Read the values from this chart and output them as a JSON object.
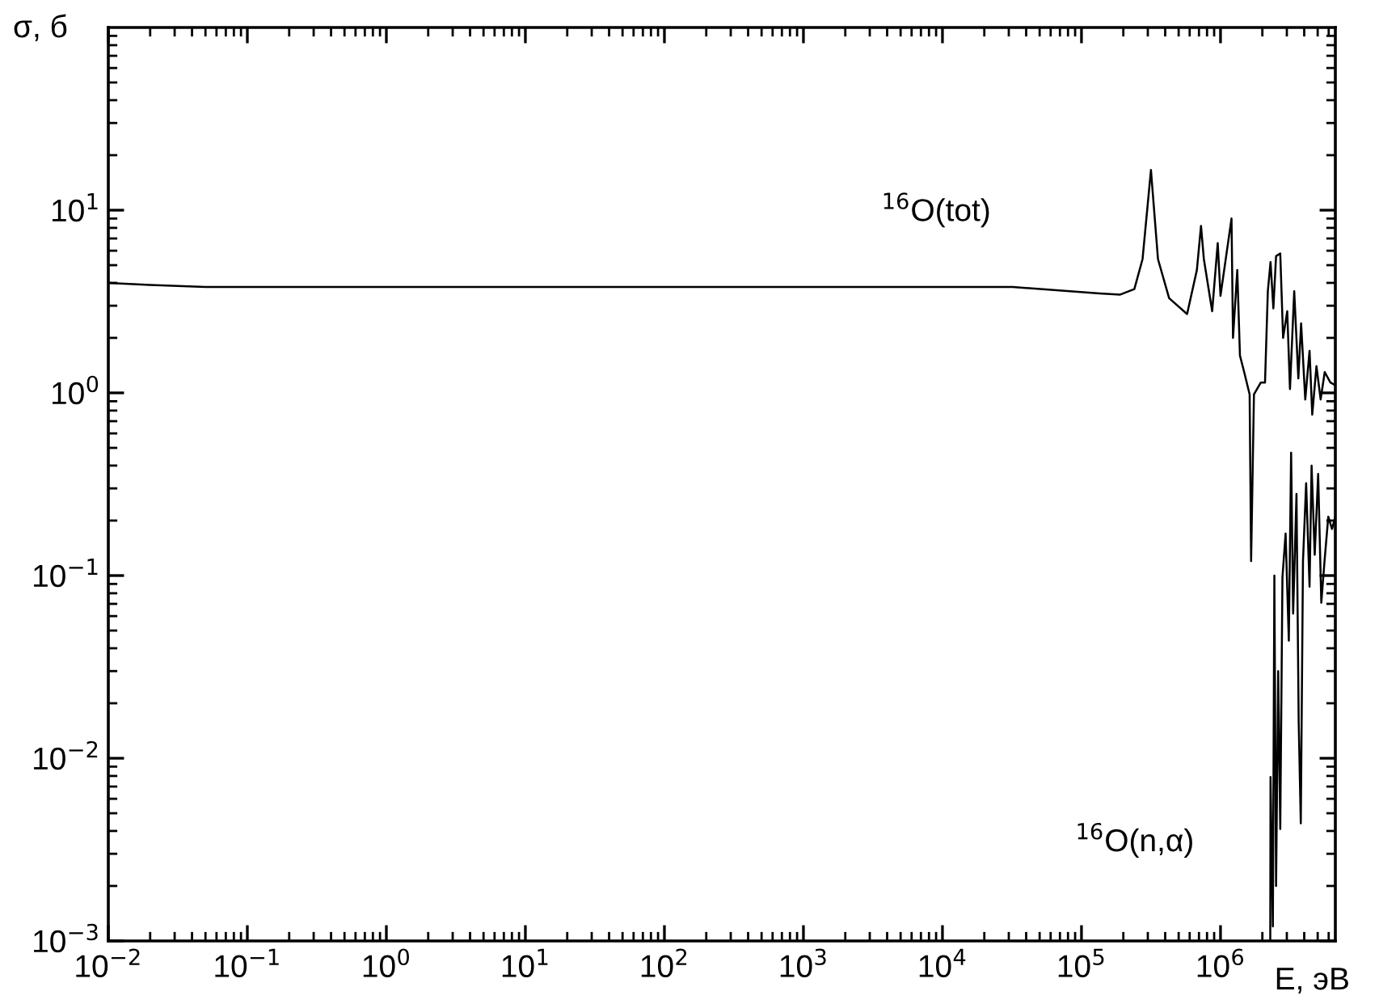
{
  "chart_data": {
    "type": "line",
    "xlabel": "E, эВ",
    "ylabel": "σ, б",
    "log": "xy",
    "grid": false,
    "legend": false,
    "marker": "none",
    "line_style": "solid",
    "xlim": [
      0.01,
      6700000
    ],
    "ylim": [
      0.001,
      100
    ],
    "xticks": [
      {
        "value": 0.01,
        "label": "10$^{−2}$"
      },
      {
        "value": 0.1,
        "label": "10$^{−1}$"
      },
      {
        "value": 1,
        "label": "10$^{0}$"
      },
      {
        "value": 10,
        "label": "10$^{1}$"
      },
      {
        "value": 100,
        "label": "10$^{2}$"
      },
      {
        "value": 1000,
        "label": "10$^{3}$"
      },
      {
        "value": 10000,
        "label": "10$^{4}$"
      },
      {
        "value": 100000,
        "label": "10$^{5}$"
      },
      {
        "value": 1000000,
        "label": "10$^{6}$"
      }
    ],
    "yticks": [
      {
        "value": 0.001,
        "label": "10$^{−3}$"
      },
      {
        "value": 0.01,
        "label": "10$^{−2}$"
      },
      {
        "value": 0.1,
        "label": "10$^{−1}$"
      },
      {
        "value": 1,
        "label": "10$^{0}$"
      },
      {
        "value": 10,
        "label": "10$^{1}$"
      }
    ],
    "series": [
      {
        "color": "#000000",
        "x": [
          0.01,
          0.02,
          0.05,
          32000,
          135000,
          190000,
          240000,
          275000,
          316000,
          355000,
          427000,
          575000,
          676000,
          724000,
          759000,
          871000,
          955000,
          1000000,
          1200000,
          1230000,
          1320000,
          1380000,
          1480000,
          1620000,
          1660000,
          1740000,
          1950000,
          2090000,
          2190000,
          2290000,
          2400000,
          2510000,
          2690000,
          2820000,
          3020000,
          3160000,
          3390000,
          3630000,
          3800000,
          4070000,
          4370000,
          4570000,
          4900000,
          5250000,
          5620000,
          6170000,
          6700000
        ],
        "values": [
          4.0,
          3.9,
          3.8,
          3.8,
          3.5,
          3.45,
          3.7,
          5.4,
          16.6,
          5.4,
          3.3,
          2.7,
          4.7,
          8.2,
          5.4,
          2.8,
          6.6,
          3.4,
          9.0,
          2.0,
          4.7,
          1.6,
          1.3,
          0.98,
          0.12,
          0.98,
          1.14,
          1.14,
          3.6,
          5.2,
          2.9,
          5.6,
          5.8,
          2.0,
          2.8,
          1.05,
          3.6,
          1.2,
          2.4,
          0.92,
          1.7,
          0.76,
          1.4,
          0.92,
          1.3,
          1.14,
          1.1
        ]
      },
      {
        "color": "#000000",
        "x": [
          2280000,
          2290000,
          2380000,
          2440000,
          2510000,
          2600000,
          2690000,
          2790000,
          2940000,
          3100000,
          3220000,
          3330000,
          3520000,
          3650000,
          3780000,
          3920000,
          4130000,
          4370000,
          4520000,
          4760000,
          5040000,
          5310000,
          5600000,
          5960000,
          6340000,
          6700000
        ],
        "values": [
          0.001,
          0.0079,
          0.0012,
          0.1,
          0.002,
          0.03,
          0.0041,
          0.098,
          0.17,
          0.044,
          0.47,
          0.062,
          0.28,
          0.016,
          0.0044,
          0.12,
          0.32,
          0.087,
          0.4,
          0.13,
          0.36,
          0.071,
          0.12,
          0.21,
          0.18,
          0.21
        ]
      }
    ],
    "annotations": [
      "$^{16}$O(tot)",
      "$^{16}$O(n,α)"
    ]
  }
}
